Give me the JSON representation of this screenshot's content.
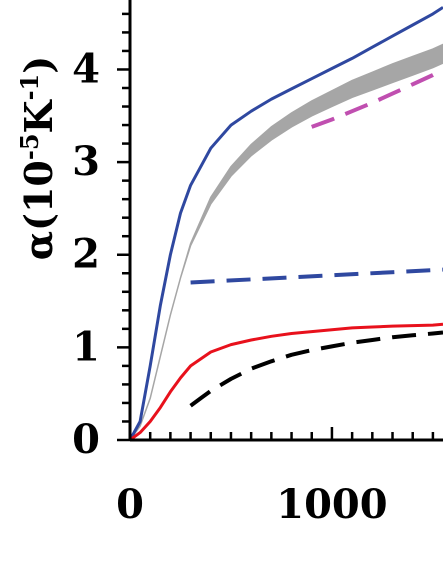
{
  "chart_data": {
    "type": "line",
    "title": "",
    "xlabel": "",
    "ylabel": {
      "base": "α(10",
      "sup1": "-5",
      "mid": "K",
      "sup2": "-1",
      "end": ")"
    },
    "xlim": [
      0,
      1550
    ],
    "ylim": [
      0,
      4.75
    ],
    "x_ticks": [
      {
        "value": 0,
        "label": "0"
      },
      {
        "value": 1000,
        "label": "1000"
      }
    ],
    "y_ticks": [
      {
        "value": 0,
        "label": "0"
      },
      {
        "value": 1,
        "label": "1"
      },
      {
        "value": 2,
        "label": "2"
      },
      {
        "value": 3,
        "label": "3"
      },
      {
        "value": 4,
        "label": "4"
      }
    ],
    "minor_tick_step_x": 100,
    "minor_tick_step_y": 0.2,
    "grid": false,
    "band": {
      "color": "#a6a6a6",
      "x": [
        0,
        50,
        100,
        150,
        200,
        250,
        300,
        400,
        500,
        600,
        700,
        800,
        900,
        1000,
        1100,
        1200,
        1300,
        1400,
        1500,
        1550
      ],
      "lower": [
        0,
        0.15,
        0.45,
        0.9,
        1.35,
        1.75,
        2.1,
        2.55,
        2.85,
        3.07,
        3.24,
        3.38,
        3.5,
        3.6,
        3.7,
        3.78,
        3.86,
        3.94,
        4.02,
        4.07
      ],
      "upper": [
        0,
        0.15,
        0.45,
        0.9,
        1.35,
        1.75,
        2.12,
        2.62,
        2.95,
        3.19,
        3.38,
        3.53,
        3.66,
        3.77,
        3.88,
        3.97,
        4.06,
        4.14,
        4.22,
        4.27
      ]
    },
    "series": [
      {
        "color": "#2f48a0",
        "dash": "solid",
        "x": [
          0,
          50,
          100,
          150,
          200,
          250,
          300,
          400,
          500,
          600,
          700,
          800,
          900,
          1000,
          1100,
          1200,
          1300,
          1400,
          1500,
          1550
        ],
        "y": [
          0,
          0.2,
          0.8,
          1.45,
          2.0,
          2.45,
          2.75,
          3.15,
          3.4,
          3.55,
          3.68,
          3.79,
          3.9,
          4.01,
          4.12,
          4.24,
          4.36,
          4.48,
          4.6,
          4.67
        ]
      },
      {
        "color": "#e8111c",
        "dash": "solid",
        "x": [
          0,
          50,
          100,
          150,
          200,
          250,
          300,
          400,
          500,
          600,
          700,
          800,
          900,
          1000,
          1100,
          1200,
          1300,
          1400,
          1500,
          1550
        ],
        "y": [
          0,
          0.08,
          0.2,
          0.35,
          0.52,
          0.67,
          0.8,
          0.95,
          1.03,
          1.08,
          1.12,
          1.15,
          1.17,
          1.19,
          1.21,
          1.22,
          1.23,
          1.235,
          1.24,
          1.25
        ]
      },
      {
        "color": "#000000",
        "dash": "dashed",
        "x": [
          300,
          350,
          400,
          500,
          600,
          700,
          800,
          900,
          1000,
          1100,
          1200,
          1300,
          1400,
          1500,
          1550
        ],
        "y": [
          0.37,
          0.45,
          0.53,
          0.66,
          0.77,
          0.85,
          0.92,
          0.97,
          1.01,
          1.05,
          1.08,
          1.11,
          1.13,
          1.15,
          1.16
        ]
      },
      {
        "color": "#2f48a0",
        "dash": "dashed",
        "x": [
          300,
          1550
        ],
        "y": [
          1.7,
          1.84
        ]
      },
      {
        "color": "#c04fb0",
        "dash": "dashed",
        "x": [
          900,
          1000,
          1100,
          1200,
          1300,
          1400,
          1500,
          1550
        ],
        "y": [
          3.38,
          3.46,
          3.55,
          3.64,
          3.74,
          3.84,
          3.94,
          4.0
        ]
      }
    ]
  }
}
